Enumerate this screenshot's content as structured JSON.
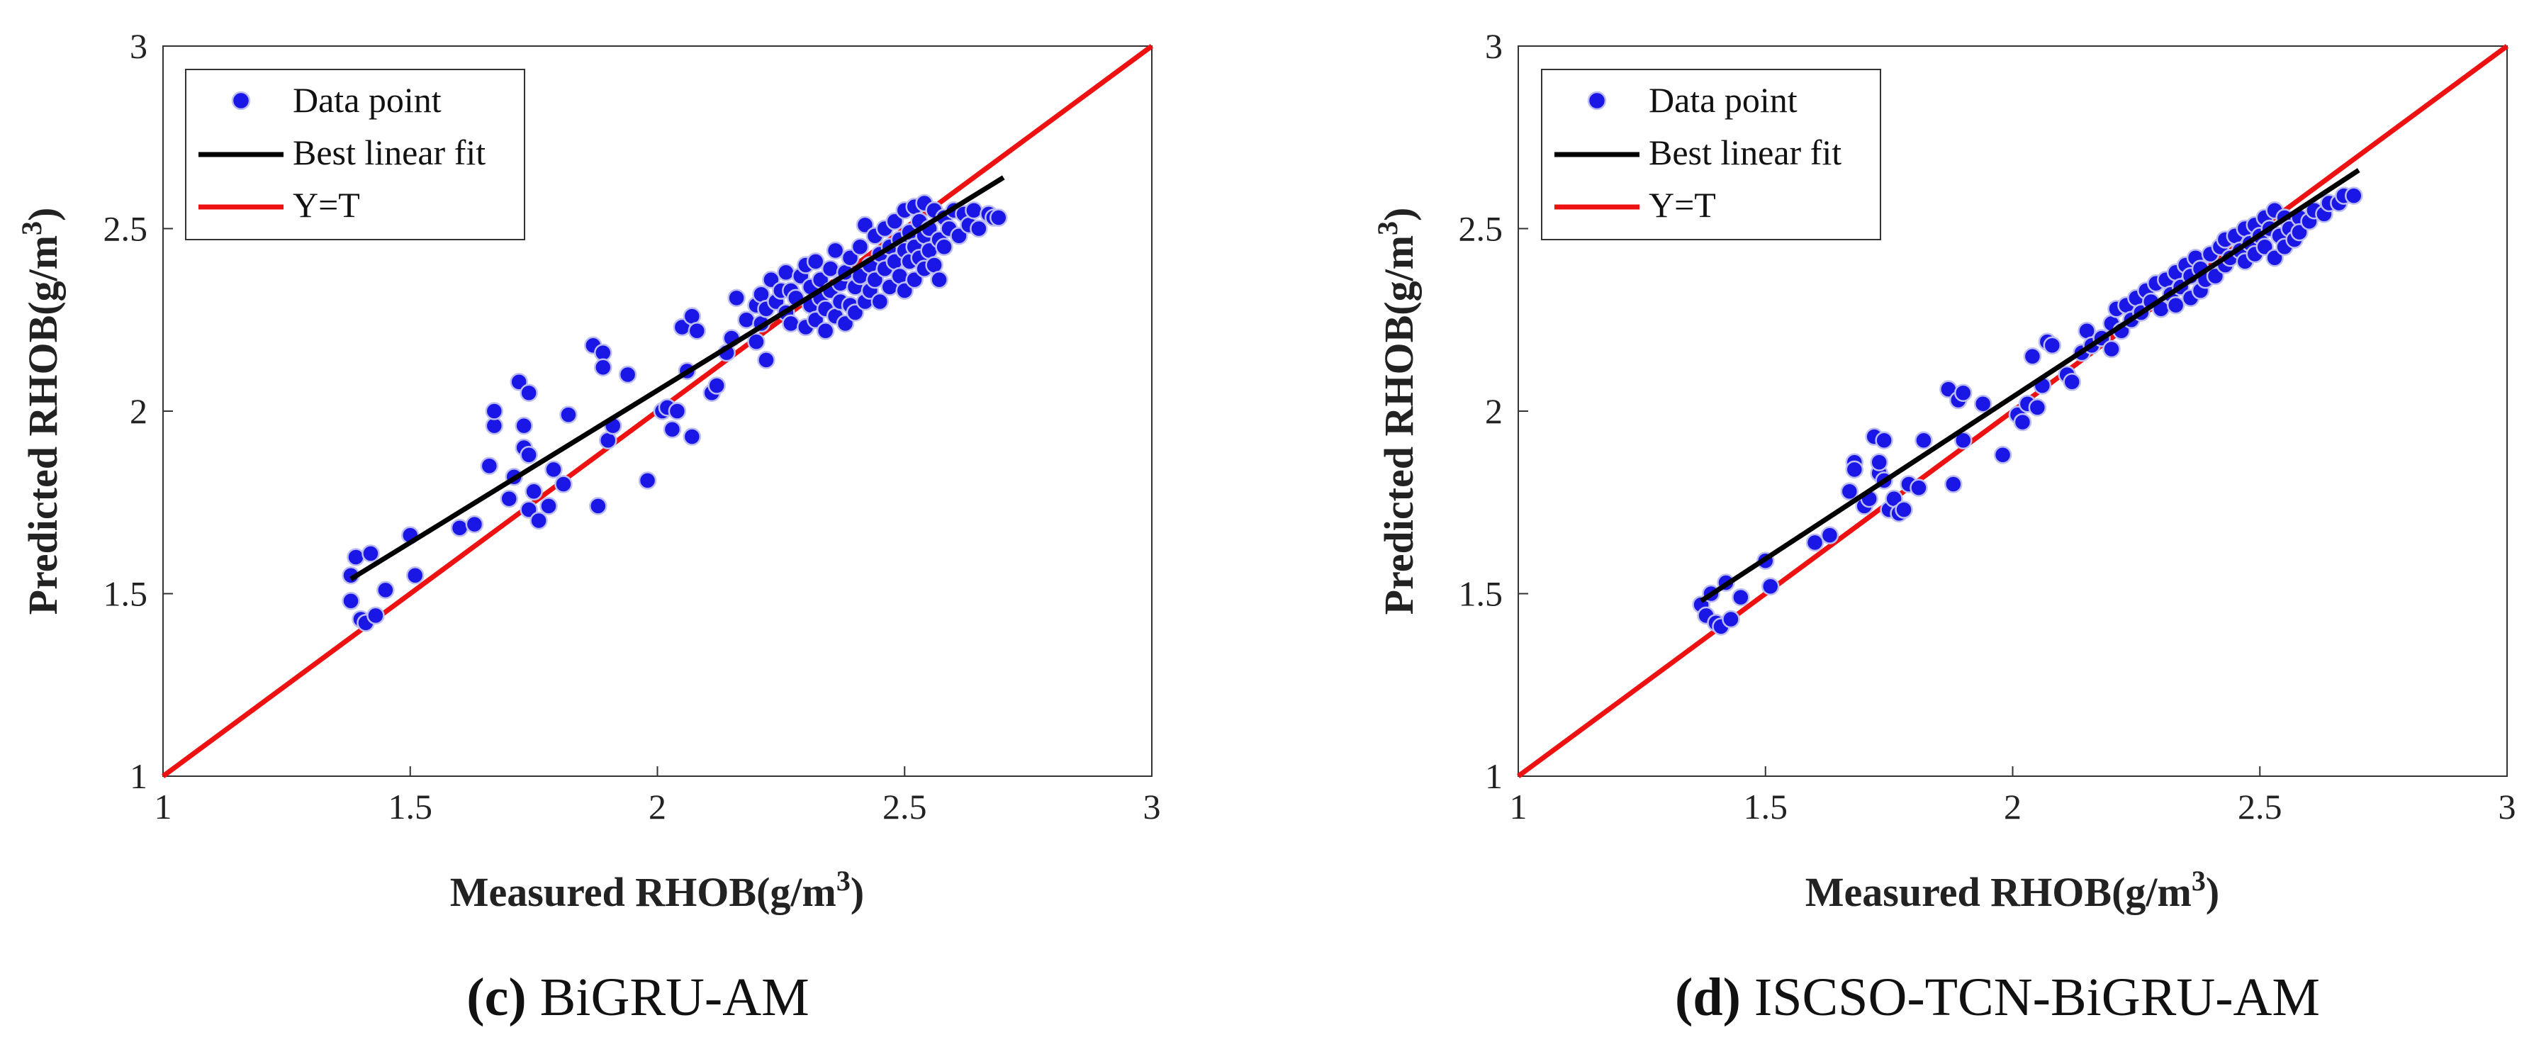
{
  "colors": {
    "points": "#1a17e6",
    "point_edge": "#bdbdf5",
    "fit_line": "#000000",
    "ref_line": "#ee1111"
  },
  "chart_data": [
    {
      "type": "scatter",
      "caption_letter": "(c)",
      "caption_text": " BiGRU-AM",
      "xlabel": "Measured RHOB(g/m",
      "ylabel": "Predicted RHOB(g/m",
      "label_sup": "3",
      "label_close": ")",
      "xlim": [
        1,
        3
      ],
      "ylim": [
        1,
        3
      ],
      "xticks": [
        1,
        1.5,
        2,
        2.5,
        3
      ],
      "yticks": [
        1,
        1.5,
        2,
        2.5,
        3
      ],
      "xtick_labels": [
        "1",
        "1.5",
        "2",
        "2.5",
        "3"
      ],
      "ytick_labels": [
        "1",
        "1.5",
        "2",
        "2.5",
        "3"
      ],
      "legend": [
        "Data point",
        "Best linear fit",
        "Y=T"
      ],
      "legend_position": "top-left",
      "fit_line": {
        "x": [
          1.38,
          2.7
        ],
        "y": [
          1.54,
          2.64
        ]
      },
      "ref_line": {
        "x": [
          1,
          3
        ],
        "y": [
          1,
          3
        ]
      },
      "points": [
        [
          1.38,
          1.55
        ],
        [
          1.39,
          1.6
        ],
        [
          1.38,
          1.48
        ],
        [
          1.4,
          1.43
        ],
        [
          1.41,
          1.42
        ],
        [
          1.42,
          1.61
        ],
        [
          1.43,
          1.44
        ],
        [
          1.45,
          1.51
        ],
        [
          1.5,
          1.66
        ],
        [
          1.51,
          1.55
        ],
        [
          1.6,
          1.68
        ],
        [
          1.63,
          1.69
        ],
        [
          1.66,
          1.85
        ],
        [
          1.67,
          1.96
        ],
        [
          1.67,
          2.0
        ],
        [
          1.7,
          1.76
        ],
        [
          1.71,
          1.82
        ],
        [
          1.72,
          2.08
        ],
        [
          1.73,
          1.9
        ],
        [
          1.73,
          1.96
        ],
        [
          1.74,
          2.05
        ],
        [
          1.74,
          1.88
        ],
        [
          1.74,
          1.73
        ],
        [
          1.75,
          1.78
        ],
        [
          1.76,
          1.7
        ],
        [
          1.78,
          1.74
        ],
        [
          1.79,
          1.84
        ],
        [
          1.81,
          1.8
        ],
        [
          1.82,
          1.99
        ],
        [
          1.87,
          2.18
        ],
        [
          1.88,
          1.74
        ],
        [
          1.89,
          2.16
        ],
        [
          1.89,
          2.12
        ],
        [
          1.9,
          1.92
        ],
        [
          1.91,
          1.96
        ],
        [
          1.94,
          2.1
        ],
        [
          1.98,
          1.81
        ],
        [
          2.01,
          2.0
        ],
        [
          2.02,
          2.01
        ],
        [
          2.03,
          1.95
        ],
        [
          2.04,
          2.0
        ],
        [
          2.05,
          2.23
        ],
        [
          2.06,
          2.11
        ],
        [
          2.07,
          1.93
        ],
        [
          2.07,
          2.26
        ],
        [
          2.08,
          2.22
        ],
        [
          2.11,
          2.05
        ],
        [
          2.12,
          2.07
        ],
        [
          2.14,
          2.16
        ],
        [
          2.15,
          2.2
        ],
        [
          2.16,
          2.31
        ],
        [
          2.18,
          2.25
        ],
        [
          2.2,
          2.19
        ],
        [
          2.2,
          2.29
        ],
        [
          2.21,
          2.32
        ],
        [
          2.21,
          2.24
        ],
        [
          2.22,
          2.14
        ],
        [
          2.22,
          2.28
        ],
        [
          2.23,
          2.36
        ],
        [
          2.24,
          2.3
        ],
        [
          2.25,
          2.33
        ],
        [
          2.26,
          2.27
        ],
        [
          2.26,
          2.38
        ],
        [
          2.27,
          2.24
        ],
        [
          2.27,
          2.33
        ],
        [
          2.28,
          2.31
        ],
        [
          2.29,
          2.37
        ],
        [
          2.3,
          2.23
        ],
        [
          2.3,
          2.4
        ],
        [
          2.31,
          2.29
        ],
        [
          2.31,
          2.34
        ],
        [
          2.32,
          2.25
        ],
        [
          2.32,
          2.41
        ],
        [
          2.33,
          2.31
        ],
        [
          2.33,
          2.36
        ],
        [
          2.34,
          2.22
        ],
        [
          2.34,
          2.28
        ],
        [
          2.35,
          2.39
        ],
        [
          2.35,
          2.33
        ],
        [
          2.36,
          2.26
        ],
        [
          2.36,
          2.44
        ],
        [
          2.37,
          2.3
        ],
        [
          2.37,
          2.35
        ],
        [
          2.38,
          2.24
        ],
        [
          2.38,
          2.38
        ],
        [
          2.39,
          2.29
        ],
        [
          2.39,
          2.42
        ],
        [
          2.4,
          2.27
        ],
        [
          2.4,
          2.34
        ],
        [
          2.41,
          2.37
        ],
        [
          2.41,
          2.45
        ],
        [
          2.42,
          2.3
        ],
        [
          2.42,
          2.51
        ],
        [
          2.43,
          2.4
        ],
        [
          2.43,
          2.33
        ],
        [
          2.44,
          2.48
        ],
        [
          2.44,
          2.36
        ],
        [
          2.45,
          2.43
        ],
        [
          2.45,
          2.3
        ],
        [
          2.46,
          2.5
        ],
        [
          2.46,
          2.39
        ],
        [
          2.47,
          2.45
        ],
        [
          2.47,
          2.34
        ],
        [
          2.48,
          2.41
        ],
        [
          2.48,
          2.52
        ],
        [
          2.49,
          2.37
        ],
        [
          2.49,
          2.47
        ],
        [
          2.5,
          2.44
        ],
        [
          2.5,
          2.55
        ],
        [
          2.5,
          2.33
        ],
        [
          2.51,
          2.49
        ],
        [
          2.51,
          2.41
        ],
        [
          2.52,
          2.56
        ],
        [
          2.52,
          2.45
        ],
        [
          2.52,
          2.36
        ],
        [
          2.53,
          2.52
        ],
        [
          2.53,
          2.42
        ],
        [
          2.54,
          2.48
        ],
        [
          2.54,
          2.57
        ],
        [
          2.54,
          2.39
        ],
        [
          2.55,
          2.5
        ],
        [
          2.55,
          2.44
        ],
        [
          2.56,
          2.55
        ],
        [
          2.56,
          2.4
        ],
        [
          2.57,
          2.47
        ],
        [
          2.57,
          2.36
        ],
        [
          2.58,
          2.53
        ],
        [
          2.58,
          2.45
        ],
        [
          2.59,
          2.5
        ],
        [
          2.6,
          2.55
        ],
        [
          2.61,
          2.48
        ],
        [
          2.62,
          2.54
        ],
        [
          2.63,
          2.51
        ],
        [
          2.64,
          2.55
        ],
        [
          2.65,
          2.5
        ],
        [
          2.67,
          2.54
        ],
        [
          2.68,
          2.53
        ],
        [
          2.69,
          2.53
        ]
      ]
    },
    {
      "type": "scatter",
      "caption_letter": "(d)",
      "caption_text": " ISCSO-TCN-BiGRU-AM",
      "xlabel": "Measured RHOB(g/m",
      "ylabel": "Predicted RHOB(g/m",
      "label_sup": "3",
      "label_close": ")",
      "xlim": [
        1,
        3
      ],
      "ylim": [
        1,
        3
      ],
      "xticks": [
        1,
        1.5,
        2,
        2.5,
        3
      ],
      "yticks": [
        1,
        1.5,
        2,
        2.5,
        3
      ],
      "xtick_labels": [
        "1",
        "1.5",
        "2",
        "2.5",
        "3"
      ],
      "ytick_labels": [
        "1",
        "1.5",
        "2",
        "2.5",
        "3"
      ],
      "legend": [
        "Data point",
        "Best linear fit",
        "Y=T"
      ],
      "legend_position": "top-left",
      "fit_line": {
        "x": [
          1.37,
          2.7
        ],
        "y": [
          1.48,
          2.66
        ]
      },
      "ref_line": {
        "x": [
          1,
          3
        ],
        "y": [
          1,
          3
        ]
      },
      "points": [
        [
          1.37,
          1.47
        ],
        [
          1.38,
          1.44
        ],
        [
          1.39,
          1.5
        ],
        [
          1.4,
          1.42
        ],
        [
          1.41,
          1.41
        ],
        [
          1.42,
          1.53
        ],
        [
          1.43,
          1.43
        ],
        [
          1.45,
          1.49
        ],
        [
          1.5,
          1.59
        ],
        [
          1.51,
          1.52
        ],
        [
          1.6,
          1.64
        ],
        [
          1.63,
          1.66
        ],
        [
          1.67,
          1.78
        ],
        [
          1.68,
          1.86
        ],
        [
          1.68,
          1.84
        ],
        [
          1.7,
          1.74
        ],
        [
          1.71,
          1.76
        ],
        [
          1.72,
          1.93
        ],
        [
          1.73,
          1.83
        ],
        [
          1.73,
          1.86
        ],
        [
          1.74,
          1.92
        ],
        [
          1.74,
          1.81
        ],
        [
          1.75,
          1.73
        ],
        [
          1.76,
          1.76
        ],
        [
          1.77,
          1.72
        ],
        [
          1.78,
          1.73
        ],
        [
          1.79,
          1.8
        ],
        [
          1.81,
          1.79
        ],
        [
          1.82,
          1.92
        ],
        [
          1.87,
          2.06
        ],
        [
          1.88,
          1.8
        ],
        [
          1.89,
          2.03
        ],
        [
          1.9,
          1.92
        ],
        [
          1.9,
          2.05
        ],
        [
          1.94,
          2.02
        ],
        [
          1.98,
          1.88
        ],
        [
          2.01,
          1.99
        ],
        [
          2.02,
          1.97
        ],
        [
          2.03,
          2.02
        ],
        [
          2.04,
          2.15
        ],
        [
          2.05,
          2.01
        ],
        [
          2.06,
          2.07
        ],
        [
          2.07,
          2.19
        ],
        [
          2.08,
          2.18
        ],
        [
          2.11,
          2.1
        ],
        [
          2.12,
          2.08
        ],
        [
          2.14,
          2.16
        ],
        [
          2.15,
          2.22
        ],
        [
          2.16,
          2.18
        ],
        [
          2.18,
          2.2
        ],
        [
          2.2,
          2.24
        ],
        [
          2.2,
          2.17
        ],
        [
          2.21,
          2.28
        ],
        [
          2.22,
          2.22
        ],
        [
          2.23,
          2.29
        ],
        [
          2.24,
          2.25
        ],
        [
          2.25,
          2.31
        ],
        [
          2.26,
          2.27
        ],
        [
          2.27,
          2.33
        ],
        [
          2.28,
          2.3
        ],
        [
          2.29,
          2.35
        ],
        [
          2.3,
          2.28
        ],
        [
          2.31,
          2.36
        ],
        [
          2.32,
          2.32
        ],
        [
          2.33,
          2.38
        ],
        [
          2.33,
          2.29
        ],
        [
          2.34,
          2.34
        ],
        [
          2.35,
          2.4
        ],
        [
          2.36,
          2.31
        ],
        [
          2.36,
          2.37
        ],
        [
          2.37,
          2.42
        ],
        [
          2.38,
          2.33
        ],
        [
          2.38,
          2.39
        ],
        [
          2.39,
          2.36
        ],
        [
          2.4,
          2.43
        ],
        [
          2.41,
          2.37
        ],
        [
          2.42,
          2.45
        ],
        [
          2.43,
          2.4
        ],
        [
          2.43,
          2.47
        ],
        [
          2.44,
          2.42
        ],
        [
          2.45,
          2.48
        ],
        [
          2.46,
          2.44
        ],
        [
          2.47,
          2.5
        ],
        [
          2.47,
          2.41
        ],
        [
          2.48,
          2.46
        ],
        [
          2.49,
          2.51
        ],
        [
          2.49,
          2.43
        ],
        [
          2.5,
          2.48
        ],
        [
          2.51,
          2.53
        ],
        [
          2.51,
          2.45
        ],
        [
          2.52,
          2.5
        ],
        [
          2.53,
          2.55
        ],
        [
          2.53,
          2.42
        ],
        [
          2.54,
          2.48
        ],
        [
          2.55,
          2.53
        ],
        [
          2.55,
          2.45
        ],
        [
          2.56,
          2.5
        ],
        [
          2.57,
          2.47
        ],
        [
          2.58,
          2.53
        ],
        [
          2.58,
          2.49
        ],
        [
          2.6,
          2.52
        ],
        [
          2.61,
          2.55
        ],
        [
          2.63,
          2.54
        ],
        [
          2.64,
          2.57
        ],
        [
          2.66,
          2.57
        ],
        [
          2.67,
          2.59
        ],
        [
          2.69,
          2.59
        ]
      ]
    }
  ]
}
